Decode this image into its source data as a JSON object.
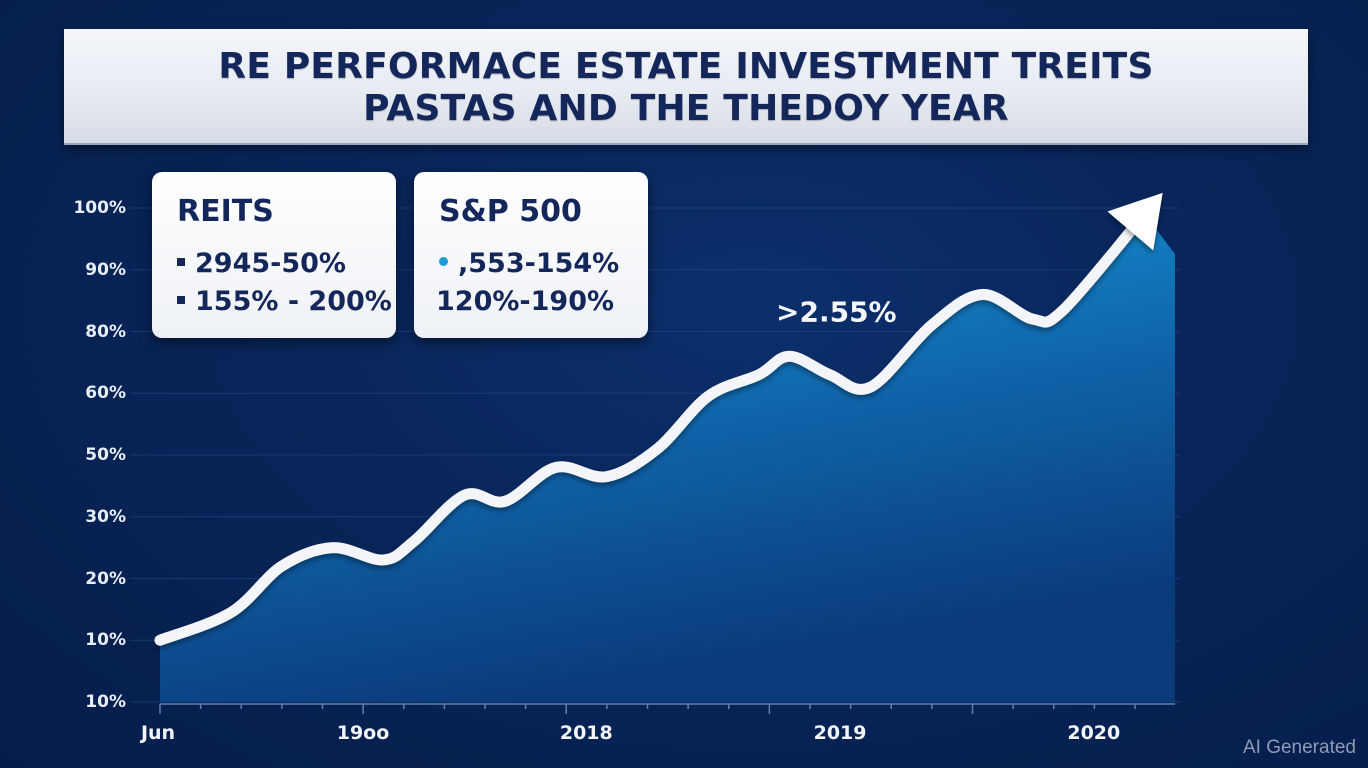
{
  "chart_data": {
    "type": "area",
    "title": "RE PERFORMACE ESTATE INVESTMENT TREITS\nPASTAS AND THE THEDOY YEAR",
    "title_lines": [
      "RE PERFORMACE ESTATE INVESTMENT TREITS",
      "PASTAS AND THE THEDOY YEAR"
    ],
    "xlabel": "",
    "ylabel": "",
    "y_tick_labels": [
      "10%",
      "10%",
      "20%",
      "30%",
      "50%",
      "60%",
      "80%",
      "90%",
      "100%"
    ],
    "x_tick_labels": [
      "Jun",
      "19oo",
      "2018",
      "2019",
      "2020"
    ],
    "x_tick_positions": [
      0,
      0.2,
      0.42,
      0.67,
      0.92
    ],
    "grid": true,
    "axis_note": "y values below are in tick-index units (0 = bottom '10%' tick, 8 = top '100%' tick); x in 0–1 fraction of time axis",
    "ylim": [
      0,
      8
    ],
    "xlim": [
      0,
      1
    ],
    "series": [
      {
        "name": "REITs",
        "color": "#ffffff",
        "fill_top": "#1aa3e0",
        "fill_bottom": "#0a3a7a",
        "points": [
          {
            "x": 0.0,
            "y": 1.0
          },
          {
            "x": 0.07,
            "y": 1.45
          },
          {
            "x": 0.12,
            "y": 2.2
          },
          {
            "x": 0.17,
            "y": 2.5
          },
          {
            "x": 0.22,
            "y": 2.3
          },
          {
            "x": 0.25,
            "y": 2.6
          },
          {
            "x": 0.3,
            "y": 3.35
          },
          {
            "x": 0.34,
            "y": 3.25
          },
          {
            "x": 0.39,
            "y": 3.8
          },
          {
            "x": 0.44,
            "y": 3.65
          },
          {
            "x": 0.49,
            "y": 4.1
          },
          {
            "x": 0.54,
            "y": 4.95
          },
          {
            "x": 0.59,
            "y": 5.3
          },
          {
            "x": 0.62,
            "y": 5.6
          },
          {
            "x": 0.66,
            "y": 5.3
          },
          {
            "x": 0.7,
            "y": 5.1
          },
          {
            "x": 0.76,
            "y": 6.1
          },
          {
            "x": 0.81,
            "y": 6.6
          },
          {
            "x": 0.86,
            "y": 6.2
          },
          {
            "x": 0.89,
            "y": 6.35
          },
          {
            "x": 0.97,
            "y": 7.9
          }
        ],
        "end_marker": "arrow"
      }
    ],
    "annotations": [
      {
        "text": ">2.55%",
        "near": "2019 peak"
      }
    ],
    "legend": {
      "placement": "top-left",
      "cards": [
        {
          "title": "REITS",
          "rows": [
            {
              "marker": "square",
              "text": "2945-50%"
            },
            {
              "marker": "square",
              "text": "155% - 200%"
            }
          ]
        },
        {
          "title": "S&P 500",
          "rows": [
            {
              "marker": "dot",
              "text": ",553-154%"
            },
            {
              "marker": "none",
              "text": "120%-190%"
            }
          ]
        }
      ]
    }
  },
  "watermark": "AI Generated",
  "colors": {
    "background": "#082559",
    "title_text": "#14275a",
    "line": "#ffffff",
    "area_top": "#1aa3e0",
    "area_bottom": "#0a3a7a",
    "dot_marker": "#1a9bd7"
  }
}
